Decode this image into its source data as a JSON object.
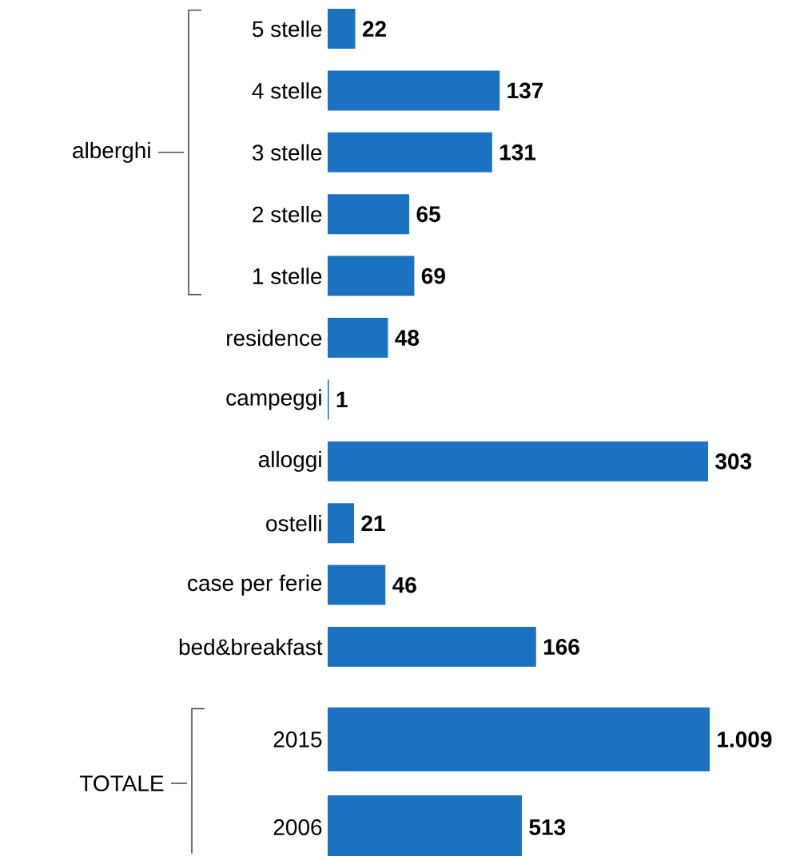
{
  "chart_data": [
    {
      "type": "bar",
      "orientation": "horizontal",
      "categories": [
        "5 stelle",
        "4 stelle",
        "3 stelle",
        "2 stelle",
        "1 stelle",
        "residence",
        "campeggi",
        "alloggi",
        "ostelli",
        "case per ferie",
        "bed&breakfast"
      ],
      "values": [
        22,
        137,
        131,
        65,
        69,
        48,
        1,
        303,
        21,
        46,
        166
      ],
      "color": "#1b72c0",
      "data_labels": true,
      "annotations": [
        "alberghi"
      ]
    },
    {
      "type": "bar",
      "orientation": "horizontal",
      "categories": [
        "2015",
        "2006"
      ],
      "values": [
        1009,
        513
      ],
      "value_labels": [
        "1.009",
        "513"
      ],
      "color": "#1b72c0",
      "annotations": [
        "TOTALE"
      ]
    }
  ]
}
